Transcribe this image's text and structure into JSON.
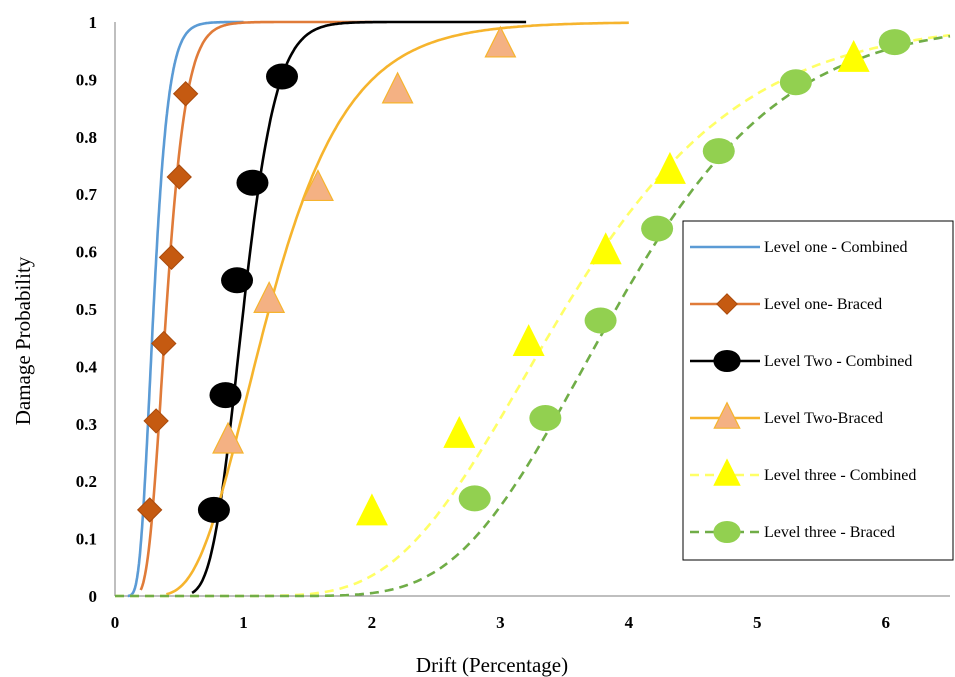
{
  "chart_data": {
    "type": "scatter",
    "title": "",
    "xlabel": "Drift (Percentage)",
    "ylabel": "Damage Probability",
    "xlim": [
      0,
      6.5
    ],
    "ylim": [
      0,
      1
    ],
    "x_ticks": [
      "0",
      "1",
      "2",
      "3",
      "4",
      "5",
      "6"
    ],
    "y_ticks": [
      "0",
      "0.1",
      "0.2",
      "0.3",
      "0.4",
      "0.5",
      "0.6",
      "0.7",
      "0.8",
      "0.9",
      "1"
    ],
    "grid": false,
    "legend_position": "right",
    "series": [
      {
        "name": "Level one - Combined",
        "color": "#5b9bd5",
        "line": "solid",
        "marker": "none",
        "curve": {
          "median": 0.3,
          "beta": 0.3,
          "x_range": [
            0.1,
            1.0
          ]
        },
        "points": []
      },
      {
        "name": "Level one- Braced",
        "color": "#e07b39",
        "marker_color": "#c55a11",
        "line": "solid",
        "marker": "diamond",
        "curve": {
          "median": 0.4,
          "beta": 0.3,
          "x_range": [
            0.2,
            2.0
          ]
        },
        "points": [
          [
            0.27,
            0.15
          ],
          [
            0.32,
            0.305
          ],
          [
            0.38,
            0.44
          ],
          [
            0.44,
            0.59
          ],
          [
            0.5,
            0.73
          ],
          [
            0.55,
            0.875
          ]
        ]
      },
      {
        "name": "Level Two - Combined",
        "color": "#000000",
        "marker_color": "#000000",
        "line": "solid",
        "marker": "circle",
        "curve": {
          "median": 1.0,
          "beta": 0.2,
          "x_range": [
            0.6,
            3.2
          ]
        },
        "points": [
          [
            0.77,
            0.15
          ],
          [
            0.86,
            0.35
          ],
          [
            0.95,
            0.55
          ],
          [
            1.07,
            0.72
          ],
          [
            1.3,
            0.905
          ]
        ]
      },
      {
        "name": "Level Two-Braced",
        "color": "#f6b42d",
        "marker_color": "#f4b183",
        "line": "solid",
        "marker": "triangle",
        "curve": {
          "median": 1.2,
          "beta": 0.4,
          "x_range": [
            0.4,
            4.0
          ]
        },
        "points": [
          [
            0.88,
            0.27
          ],
          [
            1.2,
            0.515
          ],
          [
            1.58,
            0.71
          ],
          [
            2.2,
            0.88
          ],
          [
            3.0,
            0.96
          ]
        ]
      },
      {
        "name": "Level three - Combined",
        "color": "#ffff66",
        "marker_color": "#ffff00",
        "line": "dashed",
        "marker": "triangle",
        "curve": {
          "median": 3.5,
          "beta": 0.31,
          "x_range": [
            0,
            6.5
          ]
        },
        "points": [
          [
            2.0,
            0.145
          ],
          [
            2.68,
            0.28
          ],
          [
            3.22,
            0.44
          ],
          [
            3.82,
            0.6
          ],
          [
            4.32,
            0.74
          ],
          [
            5.75,
            0.935
          ]
        ]
      },
      {
        "name": "Level three - Braced",
        "color": "#70ad47",
        "marker_color": "#92d050",
        "line": "dashed",
        "marker": "circle",
        "curve": {
          "median": 3.9,
          "beta": 0.26,
          "x_range": [
            0,
            6.5
          ]
        },
        "points": [
          [
            2.8,
            0.17
          ],
          [
            3.35,
            0.31
          ],
          [
            3.78,
            0.48
          ],
          [
            4.22,
            0.64
          ],
          [
            4.7,
            0.775
          ],
          [
            5.3,
            0.895
          ],
          [
            6.07,
            0.965
          ]
        ]
      }
    ]
  }
}
